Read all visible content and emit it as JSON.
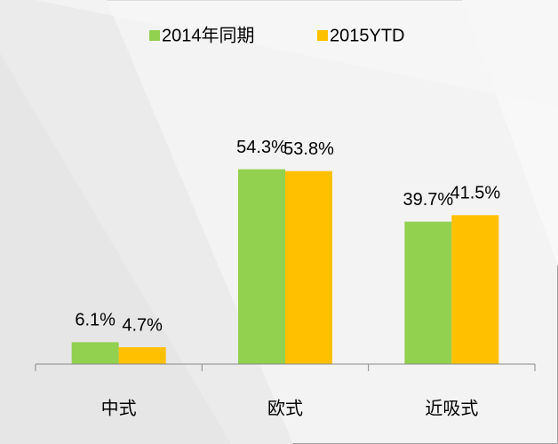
{
  "chart_data": {
    "type": "bar",
    "categories": [
      "中式",
      "欧式",
      "近吸式"
    ],
    "series": [
      {
        "name": "2014年同期",
        "color": "#92d050",
        "values": [
          6.1,
          54.3,
          39.7
        ],
        "value_labels": [
          "6.1%",
          "54.3%",
          "39.7%"
        ]
      },
      {
        "name": "2015YTD",
        "color": "#ffc000",
        "values": [
          4.7,
          53.8,
          41.5
        ],
        "value_labels": [
          "4.7%",
          "53.8%",
          "41.5%"
        ]
      }
    ],
    "legend": "top"
  }
}
